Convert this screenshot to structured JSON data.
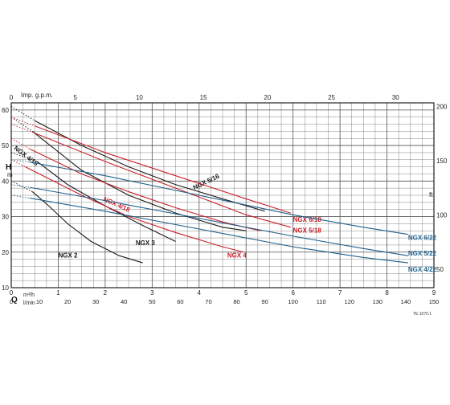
{
  "colors": {
    "black": "#1a1a1a",
    "red": "#c8202a",
    "blue": "#1f5f8b",
    "grid": "#555555",
    "frame": "#222222"
  },
  "labels": {
    "imp_gpm": "Imp. g.p.m.",
    "h": "H",
    "m": "m",
    "ft": "ft",
    "q": "Q",
    "m3h": "m³/h",
    "lmin": "l/min",
    "code": "TE.1070.1"
  },
  "chart_data": {
    "type": "line",
    "xlabel": "Q",
    "ylabel": "H",
    "x_units": [
      "m³/h",
      "l/min",
      "Imp. g.p.m."
    ],
    "y_units": [
      "m",
      "ft"
    ],
    "xlim": [
      0,
      9
    ],
    "ylim": [
      10,
      62
    ],
    "grid": true,
    "x_ticks_m3h": [
      "0",
      "1",
      "2",
      "3",
      "4",
      "5",
      "6",
      "7",
      "8",
      "9"
    ],
    "x_ticks_lmin": [
      "0",
      "10",
      "20",
      "30",
      "40",
      "50",
      "60",
      "70",
      "80",
      "90",
      "100",
      "110",
      "120",
      "130",
      "140",
      "150"
    ],
    "x_ticks_gpm": [
      "0",
      "5",
      "10",
      "15",
      "20",
      "25",
      "30"
    ],
    "y_ticks_m": [
      "10",
      "20",
      "30",
      "40",
      "50",
      "60"
    ],
    "y_ticks_ft": [
      "50",
      "100",
      "150",
      "200"
    ],
    "series": [
      {
        "name": "NGX 2",
        "color": "black",
        "label_at": [
          1.0,
          18.5
        ],
        "dotted": [
          [
            0.0,
            40
          ],
          [
            0.45,
            37
          ]
        ],
        "points": [
          [
            0.45,
            37
          ],
          [
            0.8,
            33
          ],
          [
            1.2,
            28
          ],
          [
            1.7,
            23
          ],
          [
            2.3,
            19
          ],
          [
            2.8,
            17
          ]
        ]
      },
      {
        "name": "NGX 3",
        "color": "black",
        "label_at": [
          2.65,
          22
        ],
        "dotted": [
          [
            0.0,
            48
          ],
          [
            0.55,
            45.5
          ]
        ],
        "points": [
          [
            0.55,
            45.5
          ],
          [
            1.2,
            39
          ],
          [
            2.0,
            33
          ],
          [
            2.8,
            27.5
          ],
          [
            3.5,
            23
          ]
        ]
      },
      {
        "name": "NGX 4",
        "color": "red",
        "label_at": [
          4.6,
          18.5
        ],
        "dotted": [
          [
            0.0,
            46
          ],
          [
            0.3,
            44
          ]
        ],
        "points": [
          [
            0.3,
            44
          ],
          [
            1.5,
            36
          ],
          [
            2.5,
            30
          ],
          [
            3.5,
            25.5
          ],
          [
            4.5,
            21.5
          ],
          [
            4.95,
            20
          ]
        ]
      },
      {
        "name": "NGX 4/16",
        "color": "black",
        "label_at": [
          0.05,
          49
        ],
        "rotate": 37,
        "dotted": [
          [
            0.0,
            58
          ],
          [
            0.45,
            54
          ]
        ],
        "points": [
          [
            0.45,
            54
          ],
          [
            1.5,
            43
          ],
          [
            2.5,
            36
          ],
          [
            3.5,
            31
          ],
          [
            4.5,
            27
          ],
          [
            5.0,
            26
          ]
        ]
      },
      {
        "name": "NGX 4/18",
        "color": "red",
        "label_at": [
          1.95,
          34.5
        ],
        "rotate": 24,
        "dotted": [
          [
            0.0,
            52
          ],
          [
            0.4,
            49
          ]
        ],
        "points": [
          [
            0.4,
            49
          ],
          [
            1.5,
            42
          ],
          [
            2.5,
            37
          ],
          [
            3.5,
            32.5
          ],
          [
            4.5,
            28.5
          ],
          [
            5.3,
            26
          ]
        ]
      },
      {
        "name": "NGX 5/16",
        "color": "black",
        "label_at": [
          3.9,
          37.5
        ],
        "rotate": -26,
        "dotted": [
          [
            0.0,
            61
          ],
          [
            0.5,
            57
          ]
        ],
        "points": [
          [
            0.5,
            57
          ],
          [
            1.5,
            50
          ],
          [
            2.5,
            44
          ],
          [
            3.5,
            39
          ],
          [
            4.5,
            35
          ],
          [
            5.4,
            31.5
          ]
        ]
      },
      {
        "name": "NGX 5/18",
        "color": "red",
        "label_at": [
          6.0,
          25.5
        ],
        "dotted": [
          [
            0.0,
            56
          ],
          [
            0.5,
            53.5
          ]
        ],
        "points": [
          [
            0.5,
            53.5
          ],
          [
            2.0,
            45.5
          ],
          [
            3.5,
            38
          ],
          [
            5.0,
            30.5
          ],
          [
            5.95,
            27
          ]
        ]
      },
      {
        "name": "NGX 6/18",
        "color": "red",
        "label_at": [
          6.0,
          28.5
        ],
        "dotted": [
          [
            0.0,
            58
          ],
          [
            0.5,
            55.5
          ]
        ],
        "points": [
          [
            0.5,
            55.5
          ],
          [
            2.0,
            48
          ],
          [
            3.5,
            41.5
          ],
          [
            5.0,
            35
          ],
          [
            5.95,
            31
          ]
        ]
      },
      {
        "name": "NGX 4/22",
        "color": "blue",
        "label_at": [
          8.45,
          14.5
        ],
        "dotted": [
          [
            0.0,
            36
          ],
          [
            0.4,
            35.2
          ]
        ],
        "points": [
          [
            0.4,
            35.2
          ],
          [
            2.0,
            31.5
          ],
          [
            4.0,
            26.5
          ],
          [
            6.0,
            21.5
          ],
          [
            7.5,
            18.5
          ],
          [
            8.45,
            17
          ]
        ]
      },
      {
        "name": "NGX 5/22",
        "color": "blue",
        "label_at": [
          8.45,
          19
        ],
        "dotted": [
          [
            0.0,
            39
          ],
          [
            0.4,
            38.2
          ]
        ],
        "points": [
          [
            0.4,
            38.2
          ],
          [
            2.0,
            34.5
          ],
          [
            4.0,
            29.5
          ],
          [
            6.0,
            24.5
          ],
          [
            7.5,
            21
          ],
          [
            8.45,
            19
          ]
        ]
      },
      {
        "name": "NGX 6/22",
        "color": "blue",
        "label_at": [
          8.45,
          23.5
        ],
        "dotted": [
          [
            0.0,
            46
          ],
          [
            0.4,
            45.3
          ]
        ],
        "points": [
          [
            0.4,
            45.3
          ],
          [
            2.0,
            41.5
          ],
          [
            4.0,
            36
          ],
          [
            6.0,
            30.5
          ],
          [
            7.5,
            27
          ],
          [
            8.45,
            25
          ]
        ]
      }
    ]
  }
}
